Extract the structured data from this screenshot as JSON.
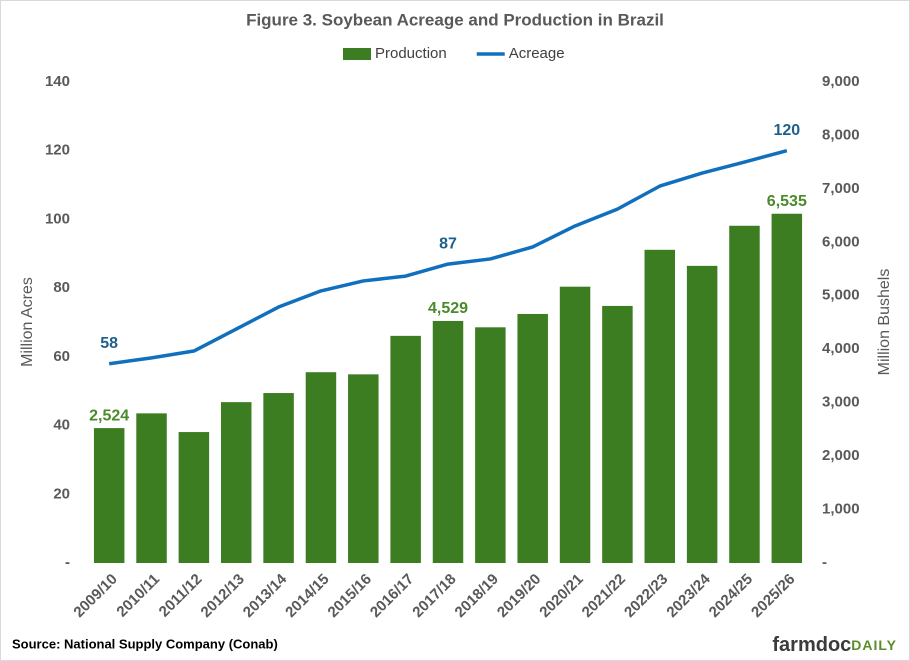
{
  "chart_data": {
    "type": "bar-line",
    "title": "Figure 3. Soybean Acreage and Production in Brazil",
    "categories": [
      "2009/10",
      "2010/11",
      "2011/12",
      "2012/13",
      "2013/14",
      "2014/15",
      "2015/16",
      "2016/17",
      "2017/18",
      "2018/19",
      "2019/20",
      "2020/21",
      "2021/22",
      "2022/23",
      "2023/24",
      "2024/25",
      "2025/26"
    ],
    "series": [
      {
        "name": "Production",
        "type": "bar",
        "axis": "y2",
        "color": "#3d7d22",
        "values": [
          2524,
          2800,
          2450,
          3010,
          3180,
          3570,
          3530,
          4250,
          4529,
          4410,
          4660,
          5170,
          4810,
          5860,
          5560,
          6310,
          6535
        ],
        "value_labels": [
          "2,524",
          null,
          null,
          null,
          null,
          null,
          null,
          null,
          "4,529",
          null,
          null,
          null,
          null,
          null,
          null,
          null,
          "6,535"
        ]
      },
      {
        "name": "Acreage",
        "type": "line",
        "axis": "y",
        "color": "#1170bd",
        "values": [
          58,
          59.7,
          61.7,
          68.1,
          74.5,
          79.2,
          82.1,
          83.5,
          87,
          88.5,
          92,
          98.1,
          103,
          109.7,
          113.5,
          116.7,
          120
        ],
        "value_labels": [
          "58",
          null,
          null,
          null,
          null,
          null,
          null,
          null,
          "87",
          null,
          null,
          null,
          null,
          null,
          null,
          null,
          "120"
        ]
      }
    ],
    "y_label": "Million Acres",
    "y2_label": "Million Bushels",
    "ylim": [
      0,
      140
    ],
    "yticks": [
      {
        "value": 0,
        "label": "-"
      },
      20,
      40,
      60,
      80,
      100,
      120,
      140
    ],
    "y2lim": [
      0,
      9000
    ],
    "y2ticks": [
      {
        "value": 0,
        "label": "-"
      },
      {
        "value": 1000,
        "label": "1,000"
      },
      {
        "value": 2000,
        "label": "2,000"
      },
      {
        "value": 3000,
        "label": "3,000"
      },
      {
        "value": 4000,
        "label": "4,000"
      },
      {
        "value": 5000,
        "label": "5,000"
      },
      {
        "value": 6000,
        "label": "6,000"
      },
      {
        "value": 7000,
        "label": "7,000"
      },
      {
        "value": 8000,
        "label": "8,000"
      },
      {
        "value": 9000,
        "label": "9,000"
      }
    ],
    "grid": false,
    "legend": "top"
  },
  "footer": {
    "source": "Source: National Supply Company (Conab)",
    "logo_main": "farmdoc",
    "logo_accent": "DAILY"
  }
}
